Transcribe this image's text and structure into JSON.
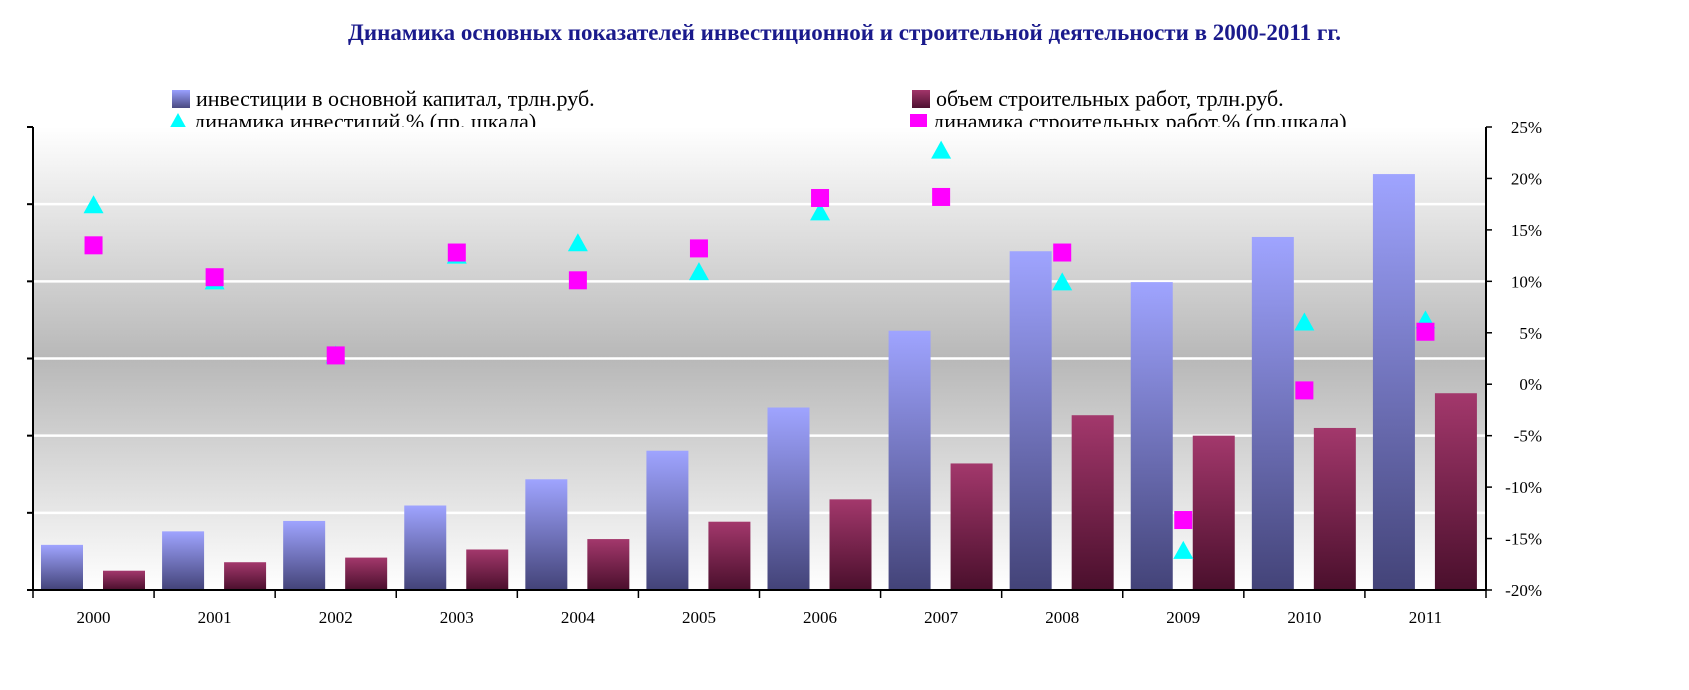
{
  "chart_data": {
    "type": "bar",
    "title": "Динамика основных показателей инвестиционной и строительной деятельности в 2000-2011 гг.",
    "categories": [
      "2000",
      "2001",
      "2002",
      "2003",
      "2004",
      "2005",
      "2006",
      "2007",
      "2008",
      "2009",
      "2010",
      "2011"
    ],
    "series": [
      {
        "name": "инвестиции в основной капитал, трлн.руб.",
        "axis": "left",
        "kind": "bar",
        "values": [
          1.17,
          1.52,
          1.79,
          2.19,
          2.87,
          3.61,
          4.73,
          6.72,
          8.78,
          7.98,
          9.15,
          10.78
        ],
        "color": "#9aa0ff"
      },
      {
        "name": "объем строительных работ, трлн.руб.",
        "axis": "left",
        "kind": "bar",
        "values": [
          0.5,
          0.72,
          0.84,
          1.05,
          1.32,
          1.77,
          2.35,
          3.28,
          4.53,
          4.0,
          4.2,
          5.1
        ],
        "color": "#a2356a"
      },
      {
        "name": "динамика инвестиций,% (пр. шкала)",
        "axis": "right",
        "kind": "triangle",
        "values": [
          17.4,
          10.0,
          2.8,
          12.5,
          13.7,
          10.9,
          16.7,
          22.7,
          9.9,
          -16.2,
          6.0,
          6.2
        ],
        "color": "#00ffff"
      },
      {
        "name": "динамика строительных работ,% (пр.шкала)",
        "axis": "right",
        "kind": "square",
        "values": [
          13.5,
          10.4,
          2.8,
          12.8,
          10.1,
          13.2,
          18.1,
          18.2,
          12.8,
          -13.2,
          -0.6,
          5.1
        ],
        "color": "#ff00ff"
      }
    ],
    "ylim_left": [
      0,
      12
    ],
    "ylim_right": [
      -20,
      25
    ],
    "right_ticks": [
      "25%",
      "20%",
      "15%",
      "10%",
      "5%",
      "0%",
      "-5%",
      "-10%",
      "-15%",
      "-20%"
    ],
    "grid": true,
    "legend_position": "top"
  }
}
